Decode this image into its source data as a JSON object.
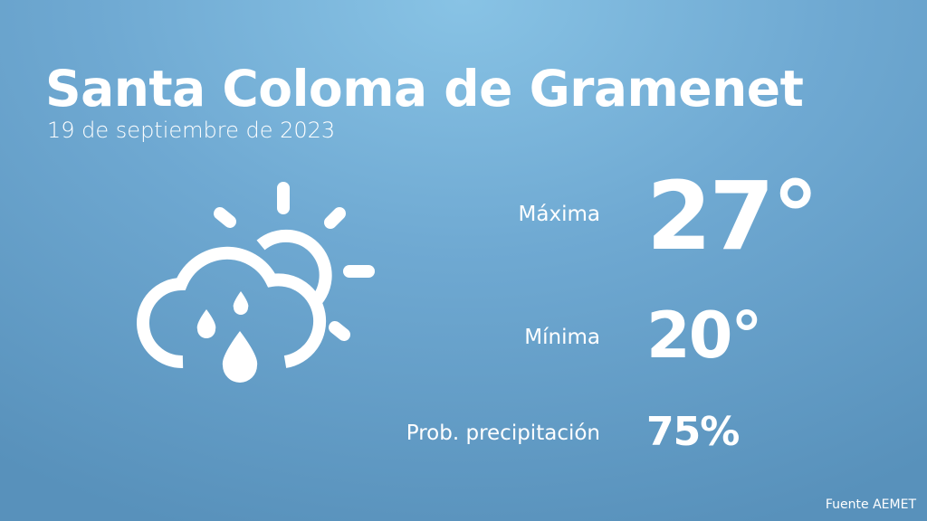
{
  "header": {
    "title": "Santa Coloma de Gramenet",
    "date": "19 de septiembre de 2023"
  },
  "forecast": {
    "icon": "cloud-sun-rain-icon",
    "max_label": "Máxima",
    "max_value": "27°",
    "min_label": "Mínima",
    "min_value": "20°",
    "precip_label": "Prob. precipitación",
    "precip_value": "75%"
  },
  "footer": {
    "source": "Fuente AEMET"
  },
  "colors": {
    "background_top": "#88c3e5",
    "background_bottom": "#5891bb",
    "foreground": "#ffffff"
  }
}
